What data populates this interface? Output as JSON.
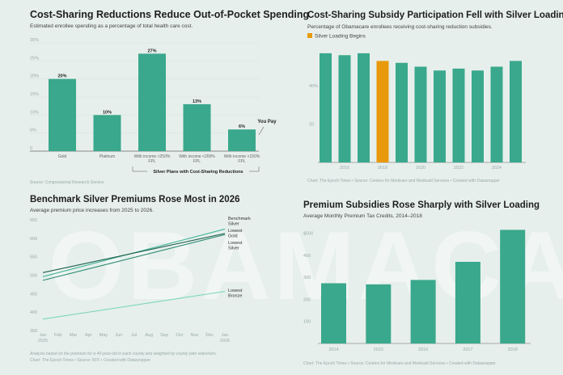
{
  "watermark": "OBAMACARE",
  "colors": {
    "bar": "#3aa88c",
    "highlight": "#e89a0c",
    "background": "#e6efec"
  },
  "chart_data": [
    {
      "type": "bar",
      "title": "Cost-Sharing Reductions Reduce Out-of-Pocket Spending",
      "subtitle": "Estimated enrollee spending as a percentage of total health care cost.",
      "categories": [
        "Gold",
        "Platinum",
        "With income <250% FPL",
        "With income <200% FPL",
        "With income <150% FPL"
      ],
      "values": [
        20,
        10,
        27,
        13,
        6
      ],
      "data_labels": [
        "20%",
        "10%",
        "27%",
        "13%",
        "6%"
      ],
      "yticks": [
        "0",
        "5%",
        "10%",
        "15%",
        "20%",
        "25%",
        "30%"
      ],
      "ylim": [
        0,
        30
      ],
      "annotation": "You Pay",
      "group_label": "Silver Plans with Cost-Sharing Reductions",
      "source": "Source: Congressional Research Service"
    },
    {
      "type": "bar",
      "title": "Cost-Sharing Subsidy Participation Fell with Silver Loading",
      "subtitle": "Percentage of Obamacare enrollees receiving cost-sharing reduction subsidies.",
      "legend": "Silver Loading Begins",
      "categories": [
        "2015",
        "2016",
        "2017",
        "2018",
        "2019",
        "2020",
        "2021",
        "2022",
        "2023",
        "2024",
        "2025"
      ],
      "values": [
        57,
        56,
        57,
        53,
        52,
        50,
        48,
        49,
        48,
        50,
        53
      ],
      "highlight": "2018",
      "xticks": [
        "2016",
        "2018",
        "2020",
        "2022",
        "2024"
      ],
      "yticks": [
        "20",
        "40%"
      ],
      "ylim": [
        0,
        60
      ],
      "footer": "Chart: The Epoch Times • Source: Centers for Medicare and Medicaid Services • Created with Datawrapper"
    },
    {
      "type": "line",
      "title": "Benchmark Silver Premiums Rose Most in 2026",
      "subtitle": "Average premium price increases from 2025 to 2026.",
      "x": [
        "Jan 2025",
        "Jan 2026"
      ],
      "xticks": [
        "Jan\n2025",
        "Feb",
        "Mar",
        "Apr",
        "May",
        "Jun",
        "Jul",
        "Aug",
        "Sep",
        "Oct",
        "Nov",
        "Dec",
        "Jan\n2026"
      ],
      "yticks": [
        "350",
        "400",
        "450",
        "500",
        "550",
        "600",
        "650"
      ],
      "ylim": [
        350,
        650
      ],
      "series": [
        {
          "name": "Benchmark Silver",
          "values": [
            496,
            625
          ],
          "color": "#3fb596"
        },
        {
          "name": "Lowest Gold",
          "values": [
            507,
            613
          ],
          "color": "#1f5e4e"
        },
        {
          "name": "Lowest Silver",
          "values": [
            486,
            610
          ],
          "color": "#2a8a70"
        },
        {
          "name": "Lowest Bronze",
          "values": [
            381,
            456
          ],
          "color": "#7fd6bd"
        }
      ],
      "note": "Analysis based on the premium for a 40-year-old in each county and weighted by county plan selections.",
      "footer": "Chart: The Epoch Times • Source: KFF • Created with Datawrapper"
    },
    {
      "type": "bar",
      "title": "Premium Subsidies Rose Sharply with Silver Loading",
      "subtitle": "Average Monthly Premium Tax Credits, 2014–2018",
      "categories": [
        "2014",
        "2015",
        "2016",
        "2017",
        "2018"
      ],
      "values": [
        273,
        268,
        288,
        370,
        515
      ],
      "yticks": [
        "100",
        "200",
        "300",
        "400",
        "$500"
      ],
      "ylim": [
        0,
        520
      ],
      "footer": "Chart: The Epoch Times • Source: Centers for Medicare and Medicaid Services • Created with Datawrapper"
    }
  ]
}
